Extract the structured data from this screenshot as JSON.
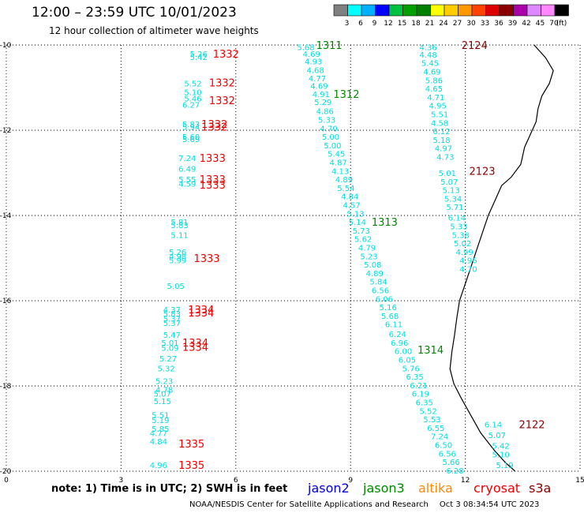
{
  "header": {
    "title": "12:00  –  23:59  UTC  10/01/2023",
    "subtitle": "12 hour collection of altimeter wave heights"
  },
  "scale": {
    "labels": [
      "3",
      "6",
      "9",
      "12",
      "15",
      "18",
      "21",
      "24",
      "27",
      "30",
      "33",
      "36",
      "39",
      "42",
      "45",
      "70",
      "(ft)"
    ],
    "colors": [
      "#808080",
      "#00ffff",
      "#00b0ff",
      "#0000ff",
      "#00c040",
      "#00a000",
      "#008000",
      "#ffff00",
      "#ffcc00",
      "#ff9900",
      "#ff4400",
      "#dd0000",
      "#880000",
      "#aa00aa",
      "#dd88ff",
      "#ff88ff",
      "#000000"
    ]
  },
  "axes": {
    "x_ticks": [
      "0",
      "3",
      "6",
      "9",
      "12",
      "15"
    ],
    "y_ticks": [
      "-10",
      "-12",
      "-14",
      "-16",
      "-18",
      "-20"
    ],
    "x_range": [
      0,
      15
    ],
    "y_range": [
      -10,
      -20
    ]
  },
  "colors": {
    "wave_value": "#00dddd",
    "jason2": "#0000dd",
    "jason3": "#008800",
    "altika": "#ff8800",
    "cryosat": "#ee0000",
    "s3a": "#880000",
    "coast": "#000000",
    "grid": "#000000"
  },
  "tracks": [
    {
      "satellite": "cryosat",
      "points": [
        {
          "lon": 4.8,
          "lat": -10.2,
          "val": "5.26"
        },
        {
          "lon": 4.8,
          "lat": -10.28,
          "val": "5.42"
        },
        {
          "lon": 4.65,
          "lat": -10.9,
          "val": "5.52"
        },
        {
          "lon": 4.65,
          "lat": -11.1,
          "val": "5.10"
        },
        {
          "lon": 4.65,
          "lat": -11.25,
          "val": "5.46"
        },
        {
          "lon": 4.6,
          "lat": -11.4,
          "val": "6.27"
        },
        {
          "lon": 4.6,
          "lat": -11.85,
          "val": "5.83"
        },
        {
          "lon": 4.6,
          "lat": -11.92,
          "val": "5.94"
        },
        {
          "lon": 4.6,
          "lat": -12.15,
          "val": "5.60"
        },
        {
          "lon": 4.6,
          "lat": -12.2,
          "val": "5.69"
        },
        {
          "lon": 4.5,
          "lat": -12.65,
          "val": "7.24"
        },
        {
          "lon": 4.5,
          "lat": -12.9,
          "val": "6.49"
        },
        {
          "lon": 4.5,
          "lat": -13.15,
          "val": "5.55"
        },
        {
          "lon": 4.5,
          "lat": -13.25,
          "val": "4.59"
        },
        {
          "lon": 4.3,
          "lat": -14.15,
          "val": "5.81"
        },
        {
          "lon": 4.3,
          "lat": -14.22,
          "val": "5.83"
        },
        {
          "lon": 4.3,
          "lat": -14.45,
          "val": "5.11"
        },
        {
          "lon": 4.25,
          "lat": -14.85,
          "val": "5.26"
        },
        {
          "lon": 4.25,
          "lat": -14.95,
          "val": "4.98"
        },
        {
          "lon": 4.25,
          "lat": -15.05,
          "val": "5.99"
        },
        {
          "lon": 4.2,
          "lat": -15.65,
          "val": "5.05"
        },
        {
          "lon": 4.1,
          "lat": -16.2,
          "val": "4.37"
        },
        {
          "lon": 4.1,
          "lat": -16.3,
          "val": "5.83"
        },
        {
          "lon": 4.1,
          "lat": -16.42,
          "val": "5.37"
        },
        {
          "lon": 4.1,
          "lat": -16.52,
          "val": "5.37"
        },
        {
          "lon": 4.1,
          "lat": -16.8,
          "val": "5.47"
        },
        {
          "lon": 4.05,
          "lat": -16.98,
          "val": "5.01"
        },
        {
          "lon": 4.05,
          "lat": -17.1,
          "val": "5.09"
        },
        {
          "lon": 4.0,
          "lat": -17.35,
          "val": "5.27"
        },
        {
          "lon": 3.95,
          "lat": -17.58,
          "val": "5.32"
        },
        {
          "lon": 3.9,
          "lat": -17.88,
          "val": "5.23"
        },
        {
          "lon": 3.9,
          "lat": -18.08,
          "val": "4.78"
        },
        {
          "lon": 3.85,
          "lat": -18.18,
          "val": "5.07"
        },
        {
          "lon": 3.85,
          "lat": -18.35,
          "val": "5.15"
        },
        {
          "lon": 3.8,
          "lat": -18.68,
          "val": "5.51"
        },
        {
          "lon": 3.8,
          "lat": -18.8,
          "val": "5.19"
        },
        {
          "lon": 3.8,
          "lat": -19.0,
          "val": "5.85"
        },
        {
          "lon": 3.75,
          "lat": -19.1,
          "val": "4.77"
        },
        {
          "lon": 3.75,
          "lat": -19.3,
          "val": "4.84"
        },
        {
          "lon": 3.75,
          "lat": -19.85,
          "val": "4.96"
        }
      ],
      "labels": [
        {
          "lon": 5.4,
          "lat": -10.2,
          "text": "1332"
        },
        {
          "lon": 5.3,
          "lat": -10.88,
          "text": "1332"
        },
        {
          "lon": 5.3,
          "lat": -11.3,
          "text": "1332"
        },
        {
          "lon": 5.1,
          "lat": -11.85,
          "text": "1332"
        },
        {
          "lon": 5.1,
          "lat": -11.92,
          "text": "1332"
        },
        {
          "lon": 5.05,
          "lat": -12.65,
          "text": "1333"
        },
        {
          "lon": 5.05,
          "lat": -13.15,
          "text": "1333"
        },
        {
          "lon": 5.05,
          "lat": -13.28,
          "text": "1333"
        },
        {
          "lon": 4.9,
          "lat": -15.0,
          "text": "1333"
        },
        {
          "lon": 4.75,
          "lat": -16.2,
          "text": "1334"
        },
        {
          "lon": 4.75,
          "lat": -16.28,
          "text": "1334"
        },
        {
          "lon": 4.6,
          "lat": -16.98,
          "text": "1334"
        },
        {
          "lon": 4.6,
          "lat": -17.08,
          "text": "1334"
        },
        {
          "lon": 4.5,
          "lat": -19.35,
          "text": "1335"
        },
        {
          "lon": 4.5,
          "lat": -19.85,
          "text": "1335"
        }
      ]
    },
    {
      "satellite": "jason3",
      "points": [
        {
          "lon": 7.6,
          "lat": -10.05,
          "val": "5.68"
        },
        {
          "lon": 7.75,
          "lat": -10.2,
          "val": "4.69"
        },
        {
          "lon": 7.8,
          "lat": -10.38,
          "val": "4.93"
        },
        {
          "lon": 7.85,
          "lat": -10.58,
          "val": "4.68"
        },
        {
          "lon": 7.9,
          "lat": -10.78,
          "val": "4.77"
        },
        {
          "lon": 7.95,
          "lat": -10.95,
          "val": "4.69"
        },
        {
          "lon": 8.0,
          "lat": -11.15,
          "val": "4.91"
        },
        {
          "lon": 8.05,
          "lat": -11.33,
          "val": "5.29"
        },
        {
          "lon": 8.1,
          "lat": -11.55,
          "val": "4.86"
        },
        {
          "lon": 8.15,
          "lat": -11.75,
          "val": "5.33"
        },
        {
          "lon": 8.2,
          "lat": -11.95,
          "val": "4.70"
        },
        {
          "lon": 8.25,
          "lat": -12.15,
          "val": "5.00"
        },
        {
          "lon": 8.3,
          "lat": -12.35,
          "val": "5.00"
        },
        {
          "lon": 8.4,
          "lat": -12.55,
          "val": "5.45"
        },
        {
          "lon": 8.45,
          "lat": -12.75,
          "val": "4.87"
        },
        {
          "lon": 8.5,
          "lat": -12.95,
          "val": "4.13"
        },
        {
          "lon": 8.6,
          "lat": -13.15,
          "val": "4.89"
        },
        {
          "lon": 8.65,
          "lat": -13.35,
          "val": "5.54"
        },
        {
          "lon": 8.75,
          "lat": -13.55,
          "val": "4.84"
        },
        {
          "lon": 8.8,
          "lat": -13.75,
          "val": "4.57"
        },
        {
          "lon": 8.9,
          "lat": -13.95,
          "val": "5.13"
        },
        {
          "lon": 8.95,
          "lat": -14.15,
          "val": "5.14"
        },
        {
          "lon": 9.05,
          "lat": -14.35,
          "val": "5.73"
        },
        {
          "lon": 9.1,
          "lat": -14.55,
          "val": "5.62"
        },
        {
          "lon": 9.2,
          "lat": -14.75,
          "val": "4.79"
        },
        {
          "lon": 9.25,
          "lat": -14.95,
          "val": "5.23"
        },
        {
          "lon": 9.35,
          "lat": -15.15,
          "val": "5.08"
        },
        {
          "lon": 9.4,
          "lat": -15.35,
          "val": "4.89"
        },
        {
          "lon": 9.5,
          "lat": -15.55,
          "val": "5.84"
        },
        {
          "lon": 9.55,
          "lat": -15.75,
          "val": "6.56"
        },
        {
          "lon": 9.65,
          "lat": -15.95,
          "val": "6.06"
        },
        {
          "lon": 9.75,
          "lat": -16.15,
          "val": "5.16"
        },
        {
          "lon": 9.8,
          "lat": -16.35,
          "val": "5.68"
        },
        {
          "lon": 9.9,
          "lat": -16.55,
          "val": "6.11"
        },
        {
          "lon": 10.0,
          "lat": -16.78,
          "val": "6.24"
        },
        {
          "lon": 10.05,
          "lat": -16.98,
          "val": "6.96"
        },
        {
          "lon": 10.15,
          "lat": -17.18,
          "val": "6.00"
        },
        {
          "lon": 10.25,
          "lat": -17.38,
          "val": "6.05"
        },
        {
          "lon": 10.35,
          "lat": -17.58,
          "val": "5.76"
        },
        {
          "lon": 10.45,
          "lat": -17.78,
          "val": "6.35"
        },
        {
          "lon": 10.55,
          "lat": -17.98,
          "val": "6.21"
        },
        {
          "lon": 10.6,
          "lat": -18.18,
          "val": "6.19"
        },
        {
          "lon": 10.7,
          "lat": -18.38,
          "val": "6.35"
        },
        {
          "lon": 10.8,
          "lat": -18.58,
          "val": "5.52"
        },
        {
          "lon": 10.9,
          "lat": -18.78,
          "val": "5.53"
        },
        {
          "lon": 11.0,
          "lat": -18.98,
          "val": "6.55"
        },
        {
          "lon": 11.1,
          "lat": -19.18,
          "val": "7.24"
        },
        {
          "lon": 11.2,
          "lat": -19.38,
          "val": "6.50"
        },
        {
          "lon": 11.3,
          "lat": -19.58,
          "val": "6.56"
        },
        {
          "lon": 11.4,
          "lat": -19.78,
          "val": "5.66"
        },
        {
          "lon": 11.5,
          "lat": -19.98,
          "val": "6.28"
        }
      ],
      "labels": [
        {
          "lon": 8.1,
          "lat": -10.0,
          "text": "1311"
        },
        {
          "lon": 8.55,
          "lat": -11.15,
          "text": "1312"
        },
        {
          "lon": 9.55,
          "lat": -14.15,
          "text": "1313"
        },
        {
          "lon": 10.75,
          "lat": -17.15,
          "text": "1314"
        }
      ]
    },
    {
      "satellite": "s3a",
      "points": [
        {
          "lon": 10.8,
          "lat": -10.05,
          "val": "4.36"
        },
        {
          "lon": 10.8,
          "lat": -10.22,
          "val": "4.48"
        },
        {
          "lon": 10.85,
          "lat": -10.42,
          "val": "5.45"
        },
        {
          "lon": 10.9,
          "lat": -10.62,
          "val": "4.69"
        },
        {
          "lon": 10.95,
          "lat": -10.82,
          "val": "5.86"
        },
        {
          "lon": 10.95,
          "lat": -11.02,
          "val": "4.65"
        },
        {
          "lon": 11.0,
          "lat": -11.22,
          "val": "4.71"
        },
        {
          "lon": 11.05,
          "lat": -11.42,
          "val": "4.95"
        },
        {
          "lon": 11.1,
          "lat": -11.62,
          "val": "5.51"
        },
        {
          "lon": 11.1,
          "lat": -11.82,
          "val": "4.58"
        },
        {
          "lon": 11.15,
          "lat": -12.02,
          "val": "6.12"
        },
        {
          "lon": 11.15,
          "lat": -12.22,
          "val": "5.18"
        },
        {
          "lon": 11.2,
          "lat": -12.42,
          "val": "4.97"
        },
        {
          "lon": 11.25,
          "lat": -12.62,
          "val": "4.73"
        },
        {
          "lon": 11.3,
          "lat": -13.0,
          "val": "5.01"
        },
        {
          "lon": 11.35,
          "lat": -13.2,
          "val": "5.07"
        },
        {
          "lon": 11.4,
          "lat": -13.4,
          "val": "5.13"
        },
        {
          "lon": 11.45,
          "lat": -13.6,
          "val": "5.34"
        },
        {
          "lon": 11.5,
          "lat": -13.8,
          "val": "5.71"
        },
        {
          "lon": 11.55,
          "lat": -14.05,
          "val": "6.14"
        },
        {
          "lon": 11.6,
          "lat": -14.25,
          "val": "5.33"
        },
        {
          "lon": 11.65,
          "lat": -14.45,
          "val": "5.38"
        },
        {
          "lon": 11.7,
          "lat": -14.65,
          "val": "5.02"
        },
        {
          "lon": 11.75,
          "lat": -14.85,
          "val": "4.99"
        },
        {
          "lon": 11.85,
          "lat": -15.05,
          "val": "4.96"
        },
        {
          "lon": 11.85,
          "lat": -15.25,
          "val": "4.70"
        }
      ],
      "labels": [
        {
          "lon": 11.9,
          "lat": -10.0,
          "text": "2124"
        },
        {
          "lon": 12.1,
          "lat": -12.95,
          "text": "2123"
        }
      ]
    },
    {
      "satellite": "s3a",
      "points": [
        {
          "lon": 12.5,
          "lat": -18.9,
          "val": "6.14"
        },
        {
          "lon": 12.6,
          "lat": -19.15,
          "val": "5.07"
        },
        {
          "lon": 12.7,
          "lat": -19.4,
          "val": "5.42"
        },
        {
          "lon": 12.7,
          "lat": -19.6,
          "val": "5.10"
        },
        {
          "lon": 12.8,
          "lat": -19.85,
          "val": "5.19"
        }
      ],
      "labels": [
        {
          "lon": 13.4,
          "lat": -18.9,
          "text": "2122"
        }
      ]
    }
  ],
  "note": "note:  1) Time is in UTC;  2) SWH is in feet",
  "satellites": [
    {
      "id": "jason2",
      "label": "jason2",
      "color": "#0000dd"
    },
    {
      "id": "jason3",
      "label": "jason3",
      "color": "#008800"
    },
    {
      "id": "altika",
      "label": "altika",
      "color": "#ff8800"
    },
    {
      "id": "cryosat",
      "label": "cryosat",
      "color": "#ee0000"
    },
    {
      "id": "s3a",
      "label": "s3a",
      "color": "#880000"
    }
  ],
  "footer": {
    "credit": "NOAA/NESDIS Center for Satellite Applications and Research",
    "timestamp": "Oct  3 08:34:54 UTC 2023"
  }
}
